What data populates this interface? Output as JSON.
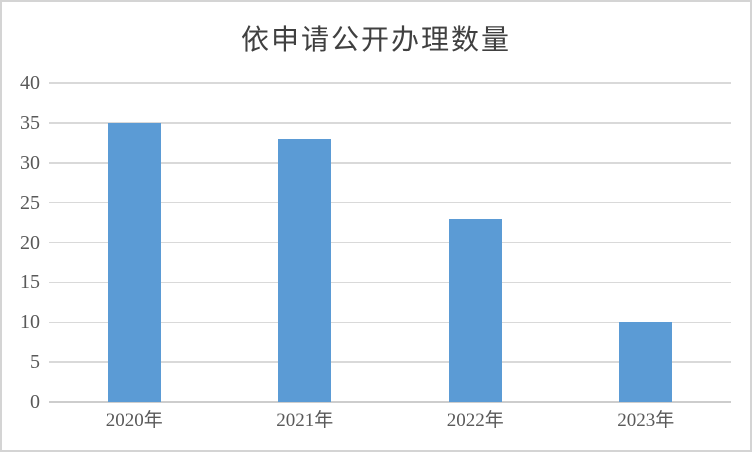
{
  "window": {
    "background": "#ffffff",
    "border_color": "#d4d4d4"
  },
  "chart_data": {
    "type": "bar",
    "title": "依申请公开办理数量",
    "categories": [
      "2020年",
      "2021年",
      "2022年",
      "2023年"
    ],
    "values": [
      35,
      33,
      23,
      10
    ],
    "xlabel": "",
    "ylabel": "",
    "ylim": [
      0,
      40
    ],
    "y_ticks": [
      0,
      5,
      10,
      15,
      20,
      25,
      30,
      35,
      40
    ],
    "grid": "horizontal",
    "legend": "none",
    "colors": {
      "bar": "#5b9bd5",
      "gridline": "#d9d9d9",
      "axis_line": "#cdcdcd",
      "tick_label": "#595959",
      "title": "#404040"
    }
  }
}
